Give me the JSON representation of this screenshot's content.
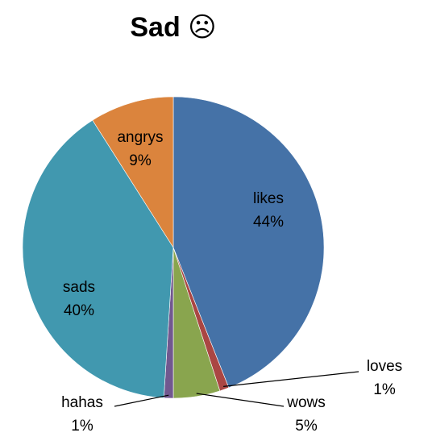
{
  "chart_data": {
    "type": "pie",
    "title": "Sad ☹",
    "categories": [
      "likes",
      "loves",
      "wows",
      "hahas",
      "sads",
      "angrys"
    ],
    "values": [
      44,
      1,
      5,
      1,
      40,
      9
    ],
    "percent_labels": [
      "44%",
      "1%",
      "5%",
      "1%",
      "40%",
      "9%"
    ],
    "colors": [
      "#4572A7",
      "#AA4643",
      "#89A54E",
      "#71588F",
      "#4198AF",
      "#DB843D"
    ],
    "start_angle_deg": 0,
    "direction": "clockwise",
    "legend": "none"
  }
}
